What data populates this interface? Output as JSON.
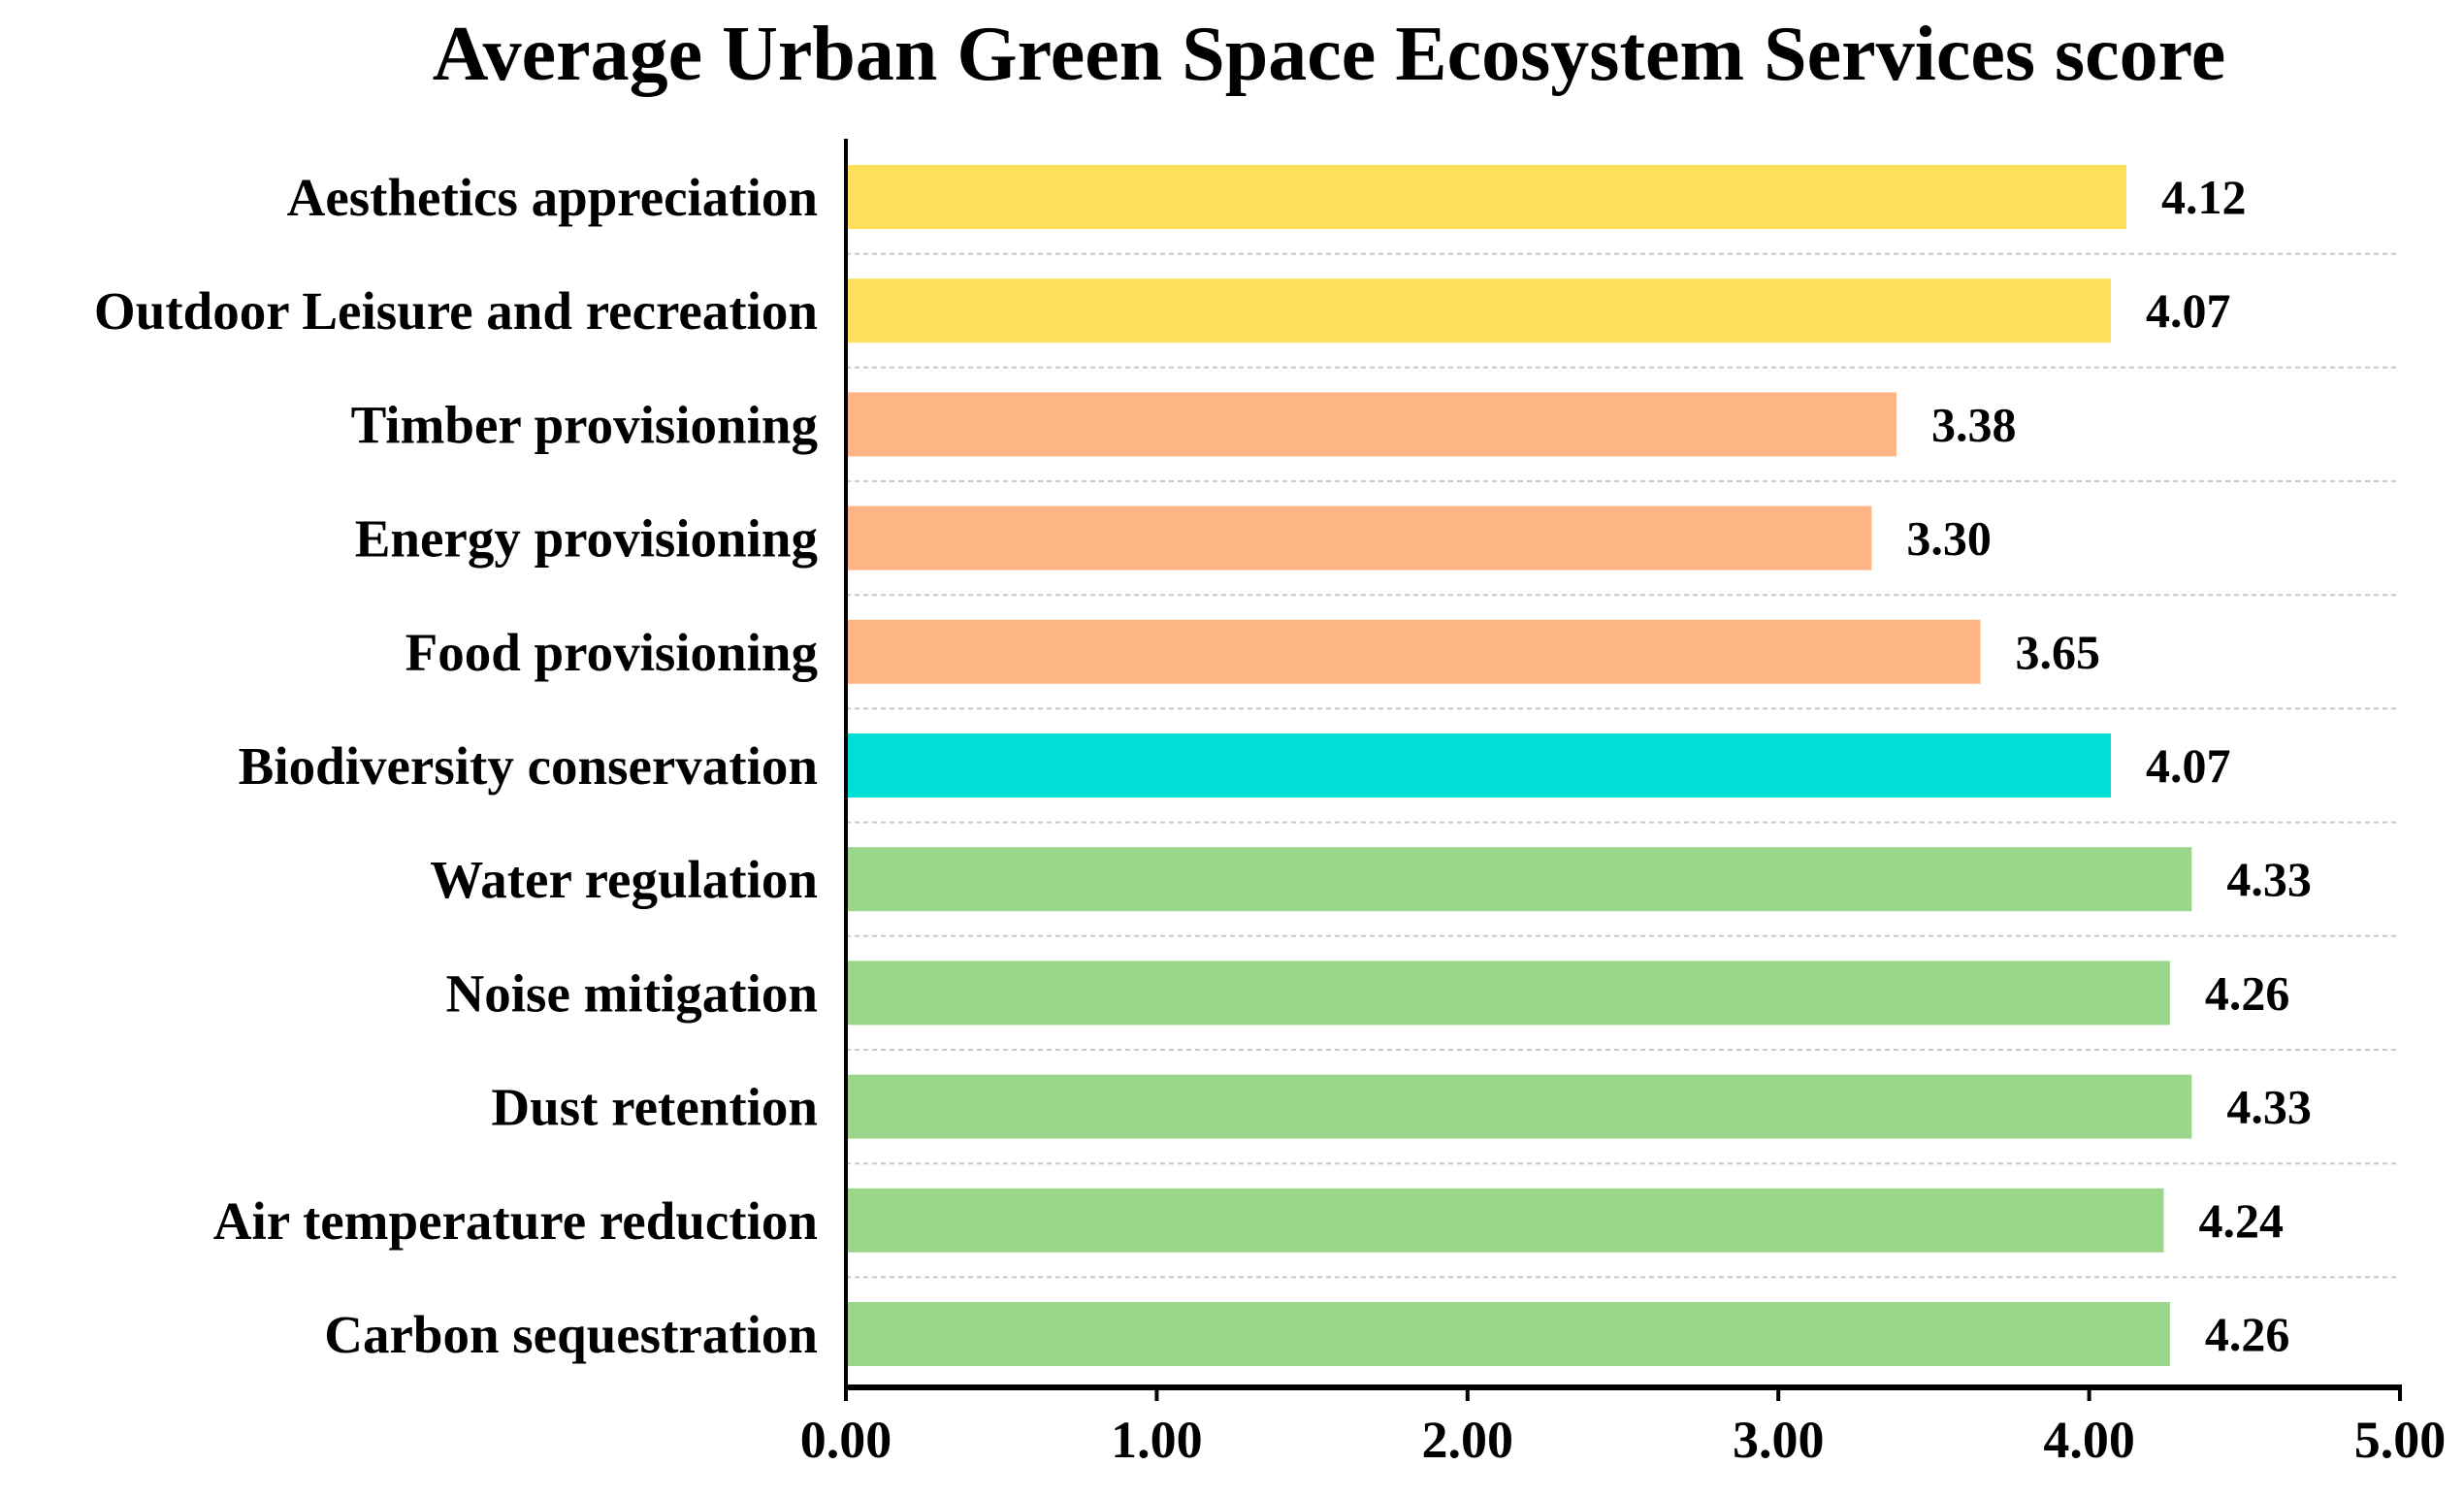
{
  "chart_data": {
    "type": "bar",
    "orientation": "horizontal",
    "title": "Average Urban Green Space Ecosystem Services score",
    "xlabel": "",
    "ylabel": "",
    "xlim": [
      0,
      5
    ],
    "x_ticks": [
      "0.00",
      "1.00",
      "2.00",
      "3.00",
      "4.00",
      "5.00"
    ],
    "grid": "horizontal dashed separators",
    "legend": "none",
    "categories": [
      "Aesthetics appreciation",
      "Outdoor Leisure and recreation",
      "Timber provisioning",
      "Energy provisioning",
      "Food provisioning",
      "Biodiversity conservation",
      "Water regulation",
      "Noise mitigation",
      "Dust retention",
      "Air temperature reduction",
      "Carbon sequestration"
    ],
    "values": [
      4.12,
      4.07,
      3.38,
      3.3,
      3.65,
      4.07,
      4.33,
      4.26,
      4.33,
      4.24,
      4.26
    ],
    "value_labels": [
      "4.12",
      "4.07",
      "3.38",
      "3.30",
      "3.65",
      "4.07",
      "4.33",
      "4.26",
      "4.33",
      "4.24",
      "4.26"
    ],
    "bar_colors": [
      "#FEDF5A",
      "#FEDF5A",
      "#FDB585",
      "#FDB585",
      "#FDB585",
      "#00DFD6",
      "#9BD78A",
      "#9BD78A",
      "#9BD78A",
      "#9BD78A",
      "#9BD78A"
    ]
  }
}
